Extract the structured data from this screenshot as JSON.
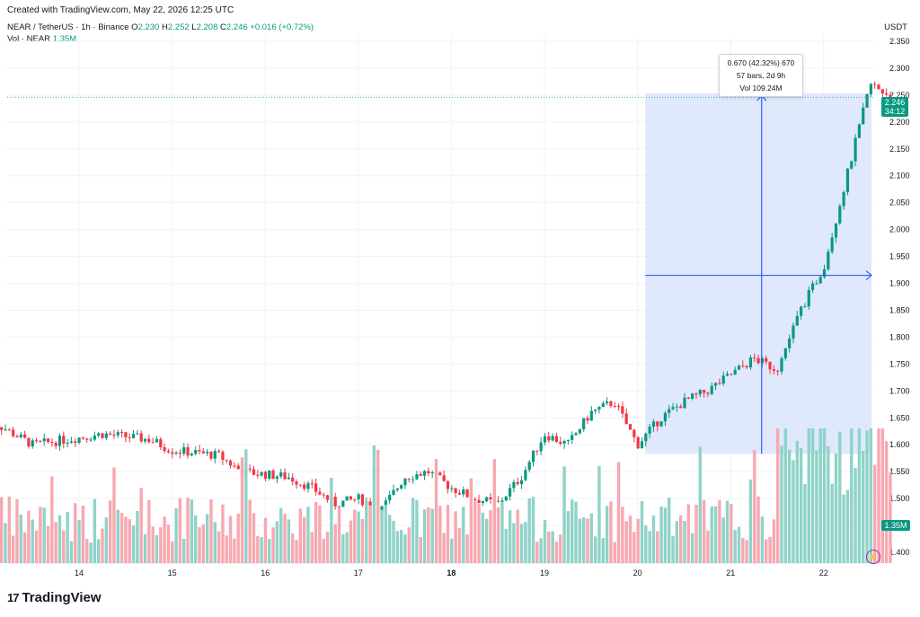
{
  "header": {
    "created": "Created with TradingView.com, May 22, 2026 12:25 UTC",
    "symbol": "NEAR / TetherUS · 1h · Binance",
    "o_label": "O",
    "o_value": "2.230",
    "h_label": "H",
    "h_value": "2.252",
    "l_label": "L",
    "l_value": "2.208",
    "c_label": "C",
    "c_value": "2.246",
    "change": "+0.016 (+0.72%)",
    "vol_label": "Vol · NEAR",
    "vol_value": "1.35M"
  },
  "currency": "USDT",
  "tooltip": {
    "line1": "0.670 (42.32%) 670",
    "line2": "57 bars, 2d 9h",
    "line3": "Vol 109.24M"
  },
  "price_badge": {
    "price": "2.246",
    "countdown": "34:12"
  },
  "volume_badge": "1.35M",
  "branding": {
    "logo_text": "TradingView",
    "logo_mark": "17"
  },
  "colors": {
    "up": "#089981",
    "down": "#f23645",
    "up_vol": "#8fd3c8",
    "down_vol": "#f7a8b0",
    "range": "#dbe4fb",
    "range_line": "#2962ff"
  },
  "chart_data": {
    "type": "candlestick",
    "title": "NEAR / TetherUS · 1h · Binance",
    "ylabel": "USDT",
    "ylim": [
      1.38,
      2.36
    ],
    "y_ticks": [
      "2.350",
      "2.300",
      "2.250",
      "2.200",
      "2.150",
      "2.100",
      "2.050",
      "2.000",
      "1.950",
      "1.900",
      "1.850",
      "1.800",
      "1.750",
      "1.700",
      "1.650",
      "1.600",
      "1.550",
      "1.500",
      "1.450",
      "1.400"
    ],
    "x_ticks": [
      "14",
      "15",
      "16",
      "17",
      "18",
      "19",
      "20",
      "21",
      "22"
    ],
    "grid": true,
    "price_path": [
      {
        "t": "13 00:00",
        "price": 1.65
      },
      {
        "t": "13 12:00",
        "price": 1.6
      },
      {
        "t": "14 06:00",
        "price": 1.62
      },
      {
        "t": "14 18:00",
        "price": 1.61
      },
      {
        "t": "15 00:00",
        "price": 1.59
      },
      {
        "t": "15 12:00",
        "price": 1.58
      },
      {
        "t": "15 18:00",
        "price": 1.55
      },
      {
        "t": "16 06:00",
        "price": 1.54
      },
      {
        "t": "16 12:00",
        "price": 1.52
      },
      {
        "t": "16 18:00",
        "price": 1.49
      },
      {
        "t": "17 00:00",
        "price": 1.5
      },
      {
        "t": "17 06:00",
        "price": 1.48
      },
      {
        "t": "17 12:00",
        "price": 1.54
      },
      {
        "t": "17 18:00",
        "price": 1.55
      },
      {
        "t": "18 00:00",
        "price": 1.52
      },
      {
        "t": "18 06:00",
        "price": 1.5
      },
      {
        "t": "18 12:00",
        "price": 1.49
      },
      {
        "t": "18 18:00",
        "price": 1.54
      },
      {
        "t": "19 00:00",
        "price": 1.62
      },
      {
        "t": "19 06:00",
        "price": 1.6
      },
      {
        "t": "19 12:00",
        "price": 1.66
      },
      {
        "t": "19 18:00",
        "price": 1.68
      },
      {
        "t": "20 00:00",
        "price": 1.6
      },
      {
        "t": "20 06:00",
        "price": 1.65
      },
      {
        "t": "20 12:00",
        "price": 1.68
      },
      {
        "t": "20 18:00",
        "price": 1.7
      },
      {
        "t": "21 06:00",
        "price": 1.76
      },
      {
        "t": "21 12:00",
        "price": 1.74
      },
      {
        "t": "21 18:00",
        "price": 1.85
      },
      {
        "t": "22 00:00",
        "price": 1.93
      },
      {
        "t": "22 06:00",
        "price": 2.1
      },
      {
        "t": "22 12:00",
        "price": 2.27
      },
      {
        "t": "22 18:00",
        "price": 2.246
      }
    ],
    "measure": {
      "from_price": 1.583,
      "to_price": 2.253,
      "change": 0.67,
      "change_pct": 42.32,
      "bars": 57,
      "duration": "2d 9h",
      "volume": "109.24M"
    },
    "volume_ylim": [
      0,
      1.0
    ]
  }
}
